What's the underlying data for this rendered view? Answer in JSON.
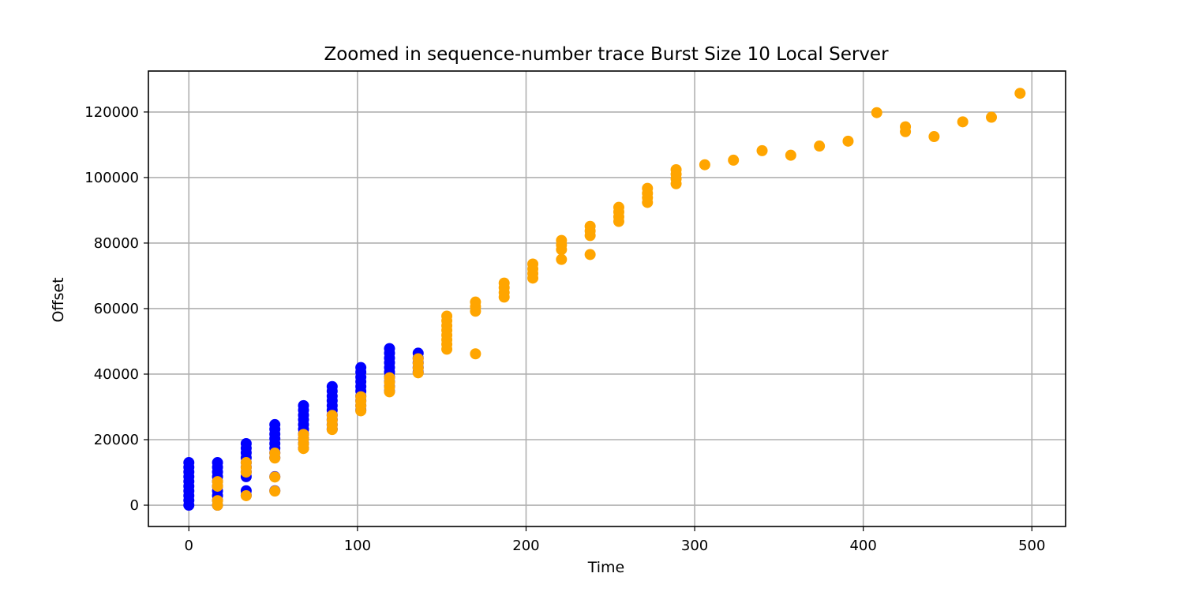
{
  "chart_data": {
    "type": "scatter",
    "title": "Zoomed in sequence-number trace Burst Size 10 Local Server",
    "xlabel": "Time",
    "ylabel": "Offset",
    "xlim": [
      -24,
      520
    ],
    "ylim": [
      -6500,
      132500
    ],
    "xticks": [
      0,
      100,
      200,
      300,
      400,
      500
    ],
    "yticks": [
      0,
      20000,
      40000,
      60000,
      80000,
      100000,
      120000
    ],
    "grid": true,
    "legend": "none",
    "series": [
      {
        "color": "#0000ff",
        "points": [
          [
            0,
            0
          ],
          [
            0,
            1450
          ],
          [
            0,
            2900
          ],
          [
            0,
            4350
          ],
          [
            0,
            5800
          ],
          [
            0,
            7250
          ],
          [
            0,
            8700
          ],
          [
            0,
            10150
          ],
          [
            0,
            11600
          ],
          [
            0,
            13000
          ],
          [
            17,
            0
          ],
          [
            17,
            1450
          ],
          [
            17,
            2900
          ],
          [
            17,
            4350
          ],
          [
            17,
            5800
          ],
          [
            17,
            7250
          ],
          [
            17,
            8700
          ],
          [
            17,
            10150
          ],
          [
            17,
            11600
          ],
          [
            17,
            13000
          ],
          [
            34,
            3000
          ],
          [
            34,
            4400
          ],
          [
            34,
            8700
          ],
          [
            34,
            10150
          ],
          [
            34,
            11600
          ],
          [
            34,
            13000
          ],
          [
            34,
            14500
          ],
          [
            34,
            16000
          ],
          [
            34,
            17400
          ],
          [
            34,
            18800
          ],
          [
            51,
            4400
          ],
          [
            51,
            8700
          ],
          [
            51,
            14500
          ],
          [
            51,
            16000
          ],
          [
            51,
            17400
          ],
          [
            51,
            18800
          ],
          [
            51,
            20300
          ],
          [
            51,
            21700
          ],
          [
            51,
            23200
          ],
          [
            51,
            24600
          ],
          [
            68,
            17400
          ],
          [
            68,
            18800
          ],
          [
            68,
            20300
          ],
          [
            68,
            21700
          ],
          [
            68,
            23200
          ],
          [
            68,
            24600
          ],
          [
            68,
            26100
          ],
          [
            68,
            27500
          ],
          [
            68,
            29000
          ],
          [
            68,
            30400
          ],
          [
            85,
            23200
          ],
          [
            85,
            24600
          ],
          [
            85,
            26100
          ],
          [
            85,
            27500
          ],
          [
            85,
            29000
          ],
          [
            85,
            30400
          ],
          [
            85,
            31900
          ],
          [
            85,
            33300
          ],
          [
            85,
            34800
          ],
          [
            85,
            36200
          ],
          [
            102,
            29000
          ],
          [
            102,
            30400
          ],
          [
            102,
            31900
          ],
          [
            102,
            33300
          ],
          [
            102,
            34800
          ],
          [
            102,
            36200
          ],
          [
            102,
            37700
          ],
          [
            102,
            39100
          ],
          [
            102,
            40600
          ],
          [
            102,
            42000
          ],
          [
            119,
            34800
          ],
          [
            119,
            36200
          ],
          [
            119,
            37700
          ],
          [
            119,
            39100
          ],
          [
            119,
            40600
          ],
          [
            119,
            42000
          ],
          [
            119,
            43500
          ],
          [
            119,
            44900
          ],
          [
            119,
            46400
          ],
          [
            119,
            47800
          ],
          [
            136,
            40600
          ],
          [
            136,
            42000
          ],
          [
            136,
            43500
          ],
          [
            136,
            44900
          ],
          [
            136,
            46400
          ]
        ]
      },
      {
        "color": "#ffa500",
        "points": [
          [
            17,
            0
          ],
          [
            17,
            1400
          ],
          [
            17,
            5800
          ],
          [
            17,
            7200
          ],
          [
            34,
            2900
          ],
          [
            34,
            10100
          ],
          [
            34,
            11500
          ],
          [
            34,
            13000
          ],
          [
            51,
            4300
          ],
          [
            51,
            8600
          ],
          [
            51,
            14400
          ],
          [
            51,
            15900
          ],
          [
            68,
            17300
          ],
          [
            68,
            18700
          ],
          [
            68,
            20200
          ],
          [
            68,
            21600
          ],
          [
            85,
            23100
          ],
          [
            85,
            24500
          ],
          [
            85,
            25900
          ],
          [
            85,
            27400
          ],
          [
            102,
            28800
          ],
          [
            102,
            30300
          ],
          [
            102,
            31700
          ],
          [
            102,
            33100
          ],
          [
            119,
            34600
          ],
          [
            119,
            36000
          ],
          [
            119,
            37500
          ],
          [
            119,
            38900
          ],
          [
            136,
            40400
          ],
          [
            136,
            41800
          ],
          [
            136,
            43300
          ],
          [
            136,
            44700
          ],
          [
            153,
            47600
          ],
          [
            153,
            49100
          ],
          [
            153,
            50500
          ],
          [
            153,
            51900
          ],
          [
            153,
            53400
          ],
          [
            153,
            54800
          ],
          [
            153,
            56300
          ],
          [
            153,
            57700
          ],
          [
            170,
            46200
          ],
          [
            170,
            59200
          ],
          [
            170,
            60600
          ],
          [
            170,
            62000
          ],
          [
            187,
            63500
          ],
          [
            187,
            64900
          ],
          [
            187,
            66400
          ],
          [
            187,
            67800
          ],
          [
            204,
            69300
          ],
          [
            204,
            70700
          ],
          [
            204,
            72100
          ],
          [
            204,
            73600
          ],
          [
            221,
            75000
          ],
          [
            221,
            78000
          ],
          [
            221,
            79400
          ],
          [
            221,
            80800
          ],
          [
            238,
            76500
          ],
          [
            238,
            82300
          ],
          [
            238,
            83700
          ],
          [
            238,
            85100
          ],
          [
            255,
            86600
          ],
          [
            255,
            88000
          ],
          [
            255,
            89500
          ],
          [
            255,
            90900
          ],
          [
            272,
            92400
          ],
          [
            272,
            93800
          ],
          [
            272,
            95200
          ],
          [
            272,
            96700
          ],
          [
            289,
            98100
          ],
          [
            289,
            99600
          ],
          [
            289,
            101000
          ],
          [
            289,
            102400
          ],
          [
            306,
            103900
          ],
          [
            323,
            105300
          ],
          [
            340,
            108200
          ],
          [
            357,
            106800
          ],
          [
            374,
            109600
          ],
          [
            391,
            111100
          ],
          [
            408,
            119800
          ],
          [
            425,
            114000
          ],
          [
            425,
            115500
          ],
          [
            442,
            112500
          ],
          [
            459,
            117000
          ],
          [
            476,
            118400
          ],
          [
            493,
            125700
          ]
        ]
      }
    ]
  }
}
